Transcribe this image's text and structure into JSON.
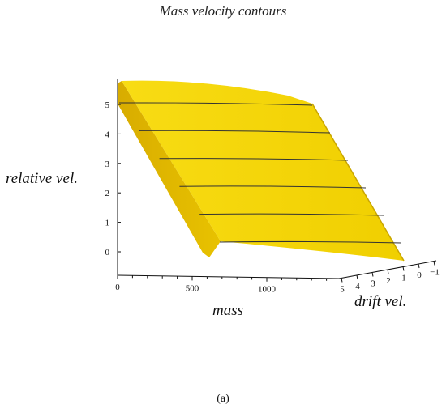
{
  "chart_data": {
    "type": "surface-3d",
    "title": "Mass velocity contours",
    "xlabel": "mass",
    "ylabel": "relative vel.",
    "zlabel": "drift vel.",
    "x_ticks": [
      "0",
      "500",
      "1000"
    ],
    "y_ticks": [
      "0",
      "1",
      "2",
      "3",
      "4",
      "5"
    ],
    "z_ticks": [
      "5",
      "4",
      "3",
      "2",
      "1",
      "0",
      "−1"
    ],
    "contour_levels": [
      0,
      1,
      2,
      3,
      4,
      5
    ],
    "surface_color": "#f2d200",
    "contour_color": "#333333"
  },
  "caption": "(a)"
}
